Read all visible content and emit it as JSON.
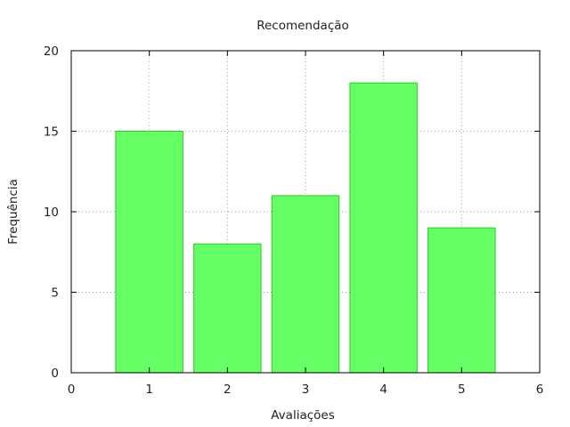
{
  "chart_data": {
    "type": "bar",
    "title": "Recomendação",
    "xlabel": "Avaliações",
    "ylabel": "Frequência",
    "x": [
      1,
      2,
      3,
      4,
      5
    ],
    "values": [
      15,
      8,
      11,
      18,
      9
    ],
    "xlim": [
      0,
      6
    ],
    "ylim": [
      0,
      20
    ],
    "xticks": [
      0,
      1,
      2,
      3,
      4,
      5,
      6
    ],
    "yticks": [
      0,
      5,
      10,
      15,
      20
    ],
    "grid": true,
    "bar_color": "#66ff66",
    "bar_edge_color": "#22cc22"
  }
}
